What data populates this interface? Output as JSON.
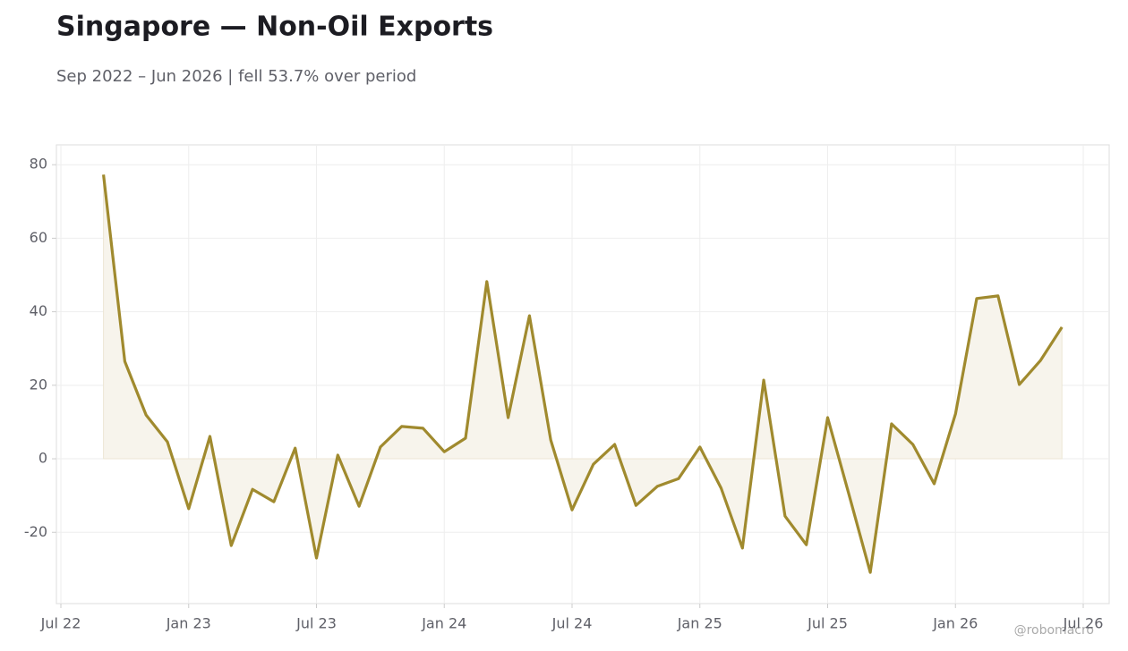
{
  "chart_data": {
    "type": "line",
    "title": "Singapore — Non-Oil Exports",
    "subtitle": "Sep 2022 – Jun 2026 | fell 53.7% over period",
    "watermark": "@robomacro",
    "x": [
      "2022-09",
      "2022-10",
      "2022-11",
      "2022-12",
      "2023-01",
      "2023-02",
      "2023-03",
      "2023-04",
      "2023-05",
      "2023-06",
      "2023-07",
      "2023-08",
      "2023-09",
      "2023-10",
      "2023-11",
      "2023-12",
      "2024-01",
      "2024-02",
      "2024-03",
      "2024-04",
      "2024-05",
      "2024-06",
      "2024-07",
      "2024-08",
      "2024-09",
      "2024-10",
      "2024-11",
      "2024-12",
      "2025-01",
      "2025-02",
      "2025-03",
      "2025-04",
      "2025-05",
      "2025-06",
      "2025-07",
      "2025-08",
      "2025-09",
      "2025-10",
      "2025-11",
      "2025-12",
      "2026-01",
      "2026-02",
      "2026-03",
      "2026-04",
      "2026-05",
      "2026-06"
    ],
    "series": [
      {
        "name": "Non-Oil Exports",
        "color": "#a08a2e",
        "values": [
          77.3,
          26.5,
          11.9,
          4.6,
          -13.6,
          6.1,
          -23.6,
          -8.3,
          -11.7,
          2.9,
          -27,
          1.0,
          -12.9,
          3.2,
          8.8,
          8.3,
          1.9,
          5.6,
          48.2,
          11.2,
          38.9,
          5.1,
          -13.9,
          -1.5,
          3.9,
          -12.7,
          -7.5,
          -5.4,
          3.2,
          -8.0,
          -24.3,
          21.4,
          -15.6,
          -23.4,
          11.2,
          -9.7,
          -30.9,
          9.5,
          3.9,
          -6.8,
          12.2,
          43.6,
          44.3,
          20.2,
          26.8,
          35.8
        ]
      }
    ],
    "fill_color": "#f7f4ec",
    "xlim": [
      "2022-07",
      "2026-07"
    ],
    "xticks": [
      {
        "value": "2022-07",
        "label": "Jul 22"
      },
      {
        "value": "2023-01",
        "label": "Jan 23"
      },
      {
        "value": "2023-07",
        "label": "Jul 23"
      },
      {
        "value": "2024-01",
        "label": "Jan 24"
      },
      {
        "value": "2024-07",
        "label": "Jul 24"
      },
      {
        "value": "2025-01",
        "label": "Jan 25"
      },
      {
        "value": "2025-07",
        "label": "Jul 25"
      },
      {
        "value": "2026-01",
        "label": "Jan 26"
      },
      {
        "value": "2026-07",
        "label": "Jul 26"
      }
    ],
    "ylim": [
      -39.4,
      85.4
    ],
    "yticks": [
      -20,
      0,
      20,
      40,
      60,
      80
    ],
    "grid": true
  }
}
